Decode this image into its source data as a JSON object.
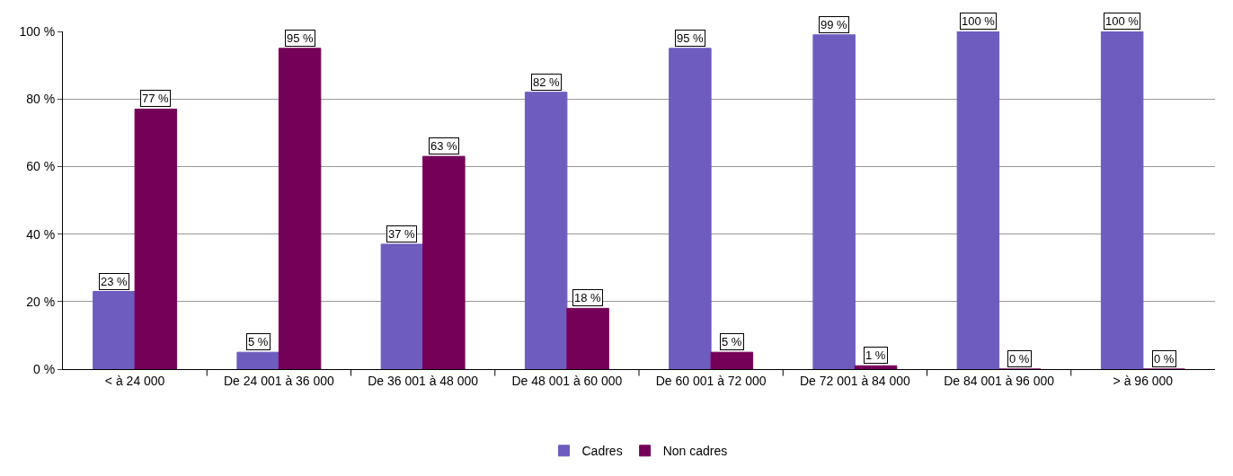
{
  "chart_data": {
    "type": "bar",
    "categories": [
      "< à 24 000",
      "De 24 001 à 36 000",
      "De 36 001 à 48 000",
      "De 48 001 à 60 000",
      "De 60 001 à 72 000",
      "De 72 001 à 84 000",
      "De 84 001 à 96 000",
      "> à 96 000"
    ],
    "series": [
      {
        "name": "Cadres",
        "color": "#6e5cbf",
        "values": [
          23,
          5,
          37,
          82,
          95,
          99,
          100,
          100
        ],
        "value_labels": [
          "23 %",
          "5 %",
          "37 %",
          "82 %",
          "95 %",
          "99 %",
          "100 %",
          "100 %"
        ]
      },
      {
        "name": "Non cadres",
        "color": "#750058",
        "values": [
          77,
          95,
          63,
          18,
          5,
          1,
          0,
          0
        ],
        "value_labels": [
          "77 %",
          "95 %",
          "63 %",
          "18 %",
          "5 %",
          "1 %",
          "0 %",
          "0 %"
        ]
      }
    ],
    "ylim": [
      0,
      100
    ],
    "yticks": [
      {
        "value": 0,
        "label": "0 %"
      },
      {
        "value": 20,
        "label": "20 %"
      },
      {
        "value": 40,
        "label": "40 %"
      },
      {
        "value": 60,
        "label": "60 %"
      },
      {
        "value": 80,
        "label": "80 %"
      },
      {
        "value": 100,
        "label": "100 %"
      }
    ],
    "grid": "y",
    "legend": "bottom"
  }
}
